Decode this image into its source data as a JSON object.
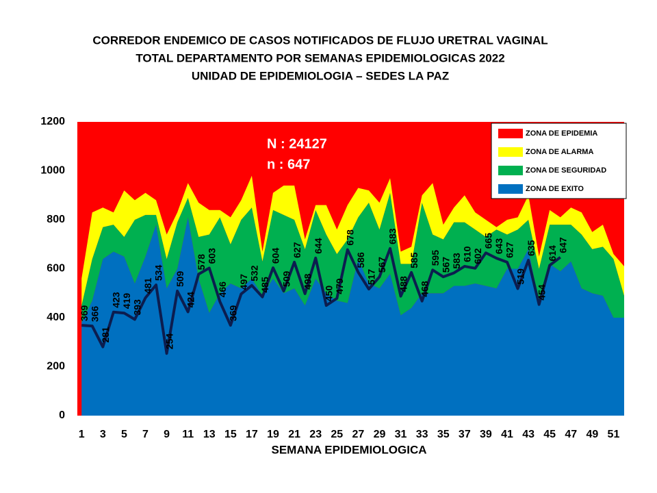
{
  "chart_data": {
    "type": "area",
    "title": [
      "CORREDOR ENDEMICO  DE CASOS NOTIFICADOS  DE FLUJO URETRAL VAGINAL",
      "TOTAL DEPARTAMENTO  POR SEMANAS EPIDEMIOLOGICAS  2022",
      "UNIDAD  DE EPIDEMIOLOGIA  – SEDES LA PAZ"
    ],
    "xlabel": "SEMANA EPIDEMIOLOGICA",
    "annotations": [
      "N : 24127",
      "n :   647"
    ],
    "x": [
      1,
      2,
      3,
      4,
      5,
      6,
      7,
      8,
      9,
      10,
      11,
      12,
      13,
      14,
      15,
      16,
      17,
      18,
      19,
      20,
      21,
      22,
      23,
      24,
      25,
      26,
      27,
      28,
      29,
      30,
      31,
      32,
      33,
      34,
      35,
      36,
      37,
      38,
      39,
      40,
      41,
      42,
      43,
      44,
      45,
      46,
      47,
      48,
      49,
      50,
      51,
      52
    ],
    "xlim": [
      0.6,
      52
    ],
    "xticks": [
      1,
      3,
      5,
      7,
      9,
      11,
      13,
      15,
      17,
      19,
      21,
      23,
      25,
      27,
      29,
      31,
      33,
      35,
      37,
      39,
      41,
      43,
      45,
      47,
      49,
      51
    ],
    "ylim": [
      0,
      1200
    ],
    "yticks": [
      0,
      200,
      400,
      600,
      800,
      1000,
      1200
    ],
    "legend": "upper right",
    "background": {
      "name": "ZONA DE EPIDEMIA",
      "color": "#ff0000"
    },
    "series": [
      {
        "name": "ZONA DE  EXITO",
        "color": "#0070c0",
        "type": "area",
        "values": [
          380,
          470,
          640,
          670,
          650,
          540,
          650,
          780,
          520,
          600,
          810,
          560,
          420,
          500,
          540,
          520,
          560,
          490,
          560,
          500,
          520,
          450,
          560,
          500,
          470,
          460,
          640,
          540,
          520,
          580,
          410,
          440,
          500,
          500,
          500,
          530,
          530,
          540,
          530,
          520,
          600,
          600,
          680,
          460,
          620,
          590,
          630,
          520,
          500,
          490,
          400,
          400
        ]
      },
      {
        "name": "ZONA DE  SEGURIDAD",
        "color": "#00b050",
        "type": "area",
        "values": [
          70,
          170,
          130,
          110,
          80,
          260,
          170,
          40,
          120,
          190,
          80,
          170,
          320,
          310,
          160,
          280,
          290,
          140,
          280,
          320,
          280,
          230,
          280,
          240,
          190,
          260,
          170,
          330,
          240,
          330,
          210,
          180,
          370,
          240,
          220,
          260,
          260,
          220,
          200,
          240,
          140,
          160,
          120,
          140,
          160,
          190,
          150,
          220,
          180,
          200,
          240,
          90
        ]
      },
      {
        "name": "ZONA DE ALARMA",
        "color": "#ffff00",
        "type": "area",
        "values": [
          110,
          190,
          80,
          50,
          190,
          80,
          90,
          60,
          100,
          40,
          60,
          140,
          100,
          30,
          110,
          80,
          130,
          40,
          70,
          120,
          140,
          40,
          20,
          120,
          100,
          140,
          120,
          50,
          110,
          60,
          50,
          70,
          30,
          210,
          60,
          60,
          110,
          70,
          70,
          10,
          60,
          50,
          100,
          50,
          60,
          30,
          70,
          90,
          70,
          90,
          20,
          120
        ]
      },
      {
        "color": "#0c1d4f",
        "type": "line",
        "values": [
          369,
          366,
          281,
          423,
          419,
          393,
          481,
          534,
          254,
          509,
          424,
          578,
          603,
          466,
          369,
          497,
          532,
          485,
          604,
          509,
          627,
          498,
          644,
          450,
          479,
          678,
          586,
          517,
          567,
          683,
          488,
          585,
          468,
          595,
          567,
          583,
          610,
          602,
          665,
          643,
          627,
          519,
          635,
          454,
          614,
          647,
          null,
          null,
          null,
          null,
          null,
          null
        ]
      }
    ]
  }
}
